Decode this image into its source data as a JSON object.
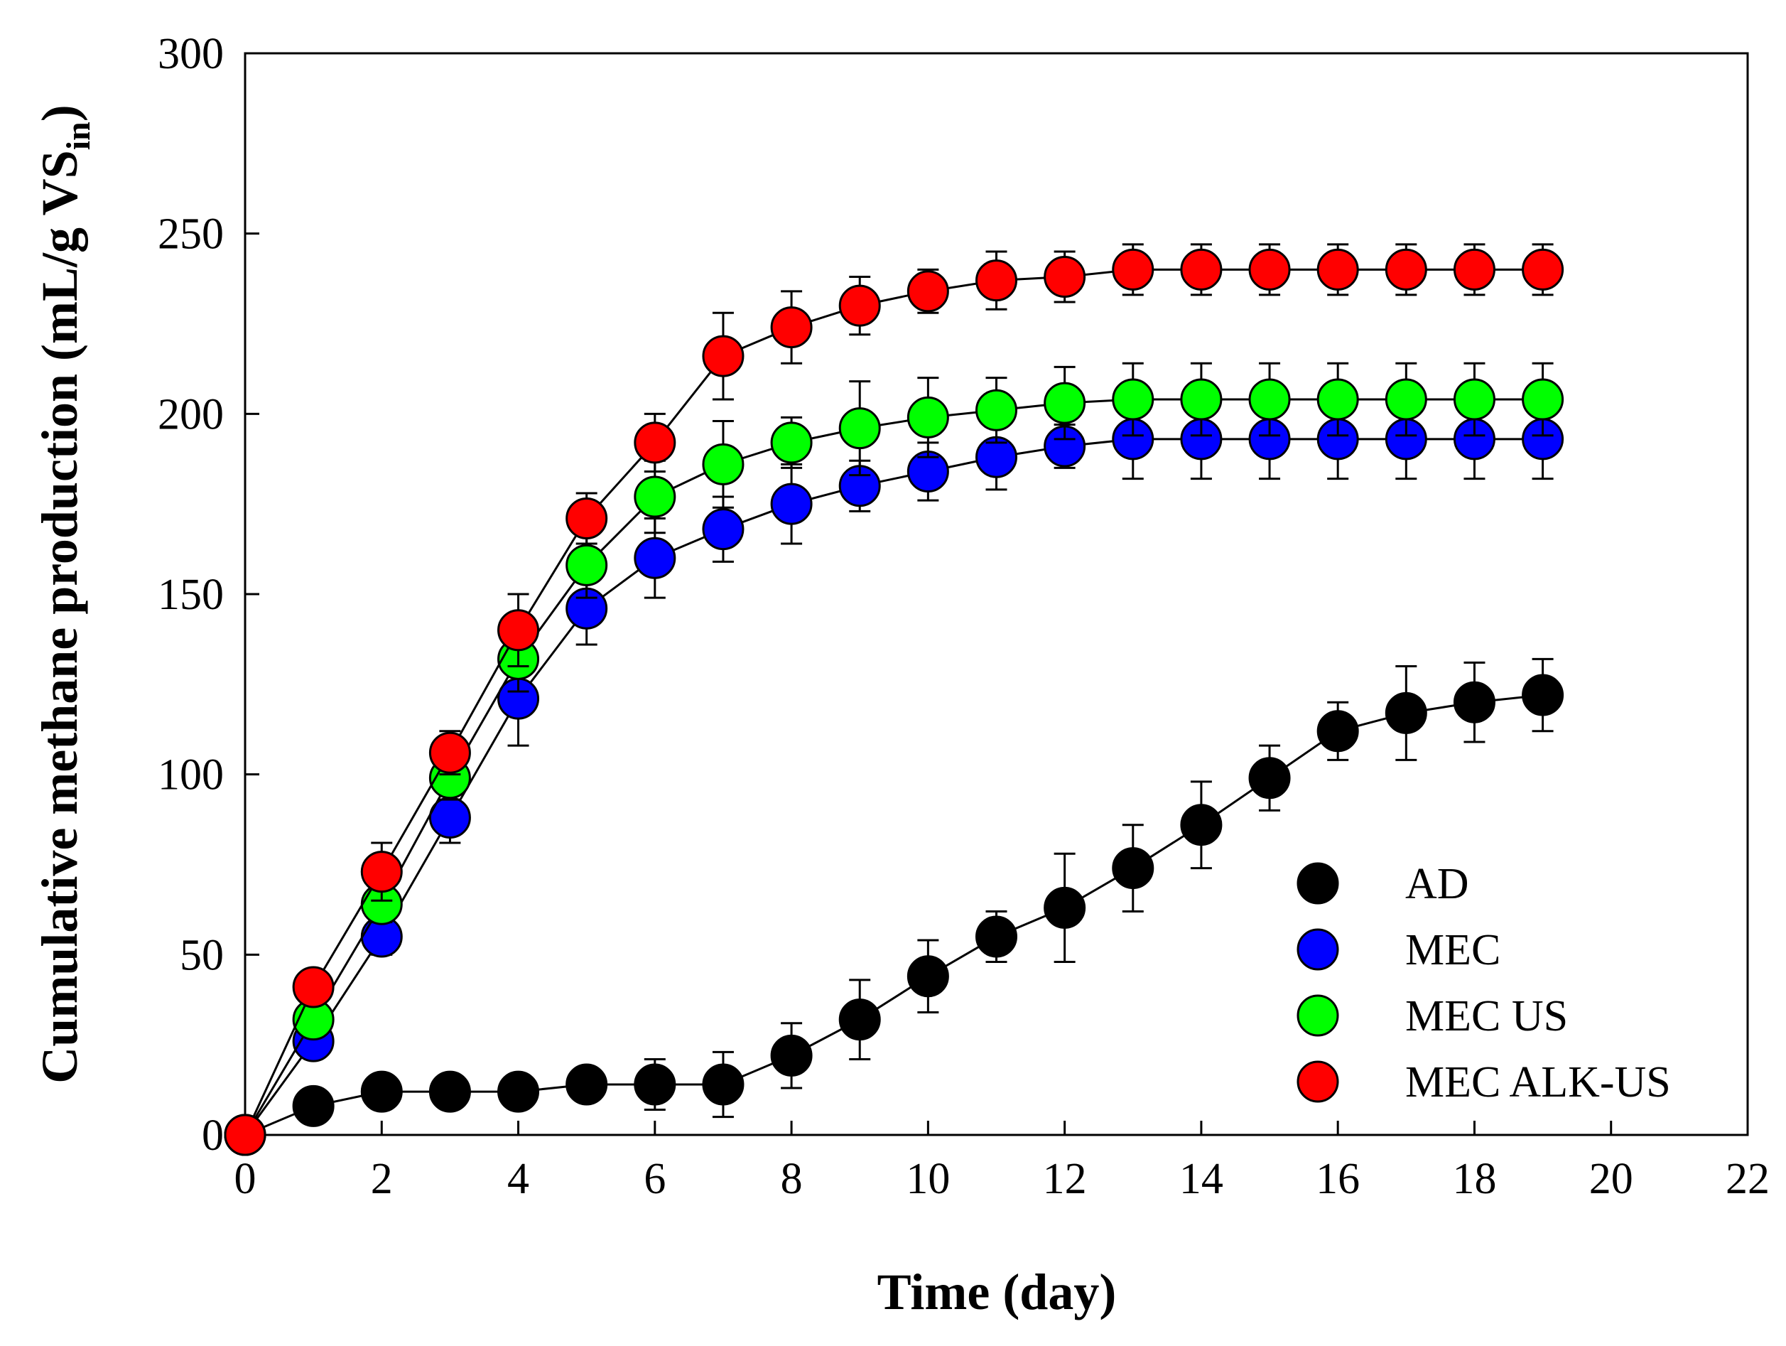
{
  "chart_data": {
    "type": "line",
    "xlabel": "Time (day)",
    "ylabel": {
      "main": "Cumulative methane production (mL/g VS",
      "subscript": "in",
      "close": ")"
    },
    "xlim": [
      0,
      22
    ],
    "ylim": [
      0,
      300
    ],
    "xticks": [
      "0",
      "2",
      "4",
      "6",
      "8",
      "10",
      "12",
      "14",
      "16",
      "18",
      "20",
      "22"
    ],
    "yticks": [
      "0",
      "50",
      "100",
      "150",
      "200",
      "250",
      "300"
    ],
    "grid": false,
    "legend_position": "bottom-right",
    "x": [
      0,
      1,
      2,
      3,
      4,
      5,
      6,
      7,
      8,
      9,
      10,
      11,
      12,
      13,
      14,
      15,
      16,
      17,
      18,
      19
    ],
    "series": [
      {
        "name": "AD",
        "color": "#000000",
        "values": [
          0,
          8,
          12,
          12,
          12,
          14,
          14,
          14,
          22,
          32,
          44,
          55,
          63,
          74,
          86,
          99,
          112,
          117,
          120,
          122
        ],
        "errors": [
          0,
          2,
          2,
          2,
          2,
          3,
          7,
          9,
          9,
          11,
          10,
          7,
          15,
          12,
          12,
          9,
          8,
          13,
          11,
          10
        ]
      },
      {
        "name": "MEC",
        "color": "#0000ff",
        "values": [
          0,
          26,
          55,
          88,
          121,
          146,
          160,
          168,
          175,
          180,
          184,
          188,
          191,
          193,
          193,
          193,
          193,
          193,
          193,
          193
        ],
        "errors": [
          0,
          3,
          5,
          7,
          13,
          10,
          11,
          9,
          11,
          7,
          8,
          9,
          6,
          11,
          11,
          11,
          11,
          11,
          11,
          11
        ]
      },
      {
        "name": "MEC US",
        "color": "#00ff00",
        "values": [
          0,
          32,
          64,
          99,
          132,
          158,
          177,
          186,
          192,
          196,
          199,
          201,
          203,
          204,
          204,
          204,
          204,
          204,
          204,
          204
        ],
        "errors": [
          0,
          3,
          5,
          6,
          9,
          9,
          10,
          12,
          7,
          13,
          11,
          9,
          10,
          10,
          10,
          10,
          10,
          10,
          10,
          10
        ]
      },
      {
        "name": "MEC ALK-US",
        "color": "#ff0000",
        "values": [
          0,
          41,
          73,
          106,
          140,
          171,
          192,
          216,
          224,
          230,
          234,
          237,
          238,
          240,
          240,
          240,
          240,
          240,
          240,
          240
        ],
        "errors": [
          0,
          3,
          8,
          6,
          10,
          7,
          8,
          12,
          10,
          8,
          6,
          8,
          7,
          7,
          7,
          7,
          7,
          7,
          7,
          7
        ]
      }
    ]
  }
}
